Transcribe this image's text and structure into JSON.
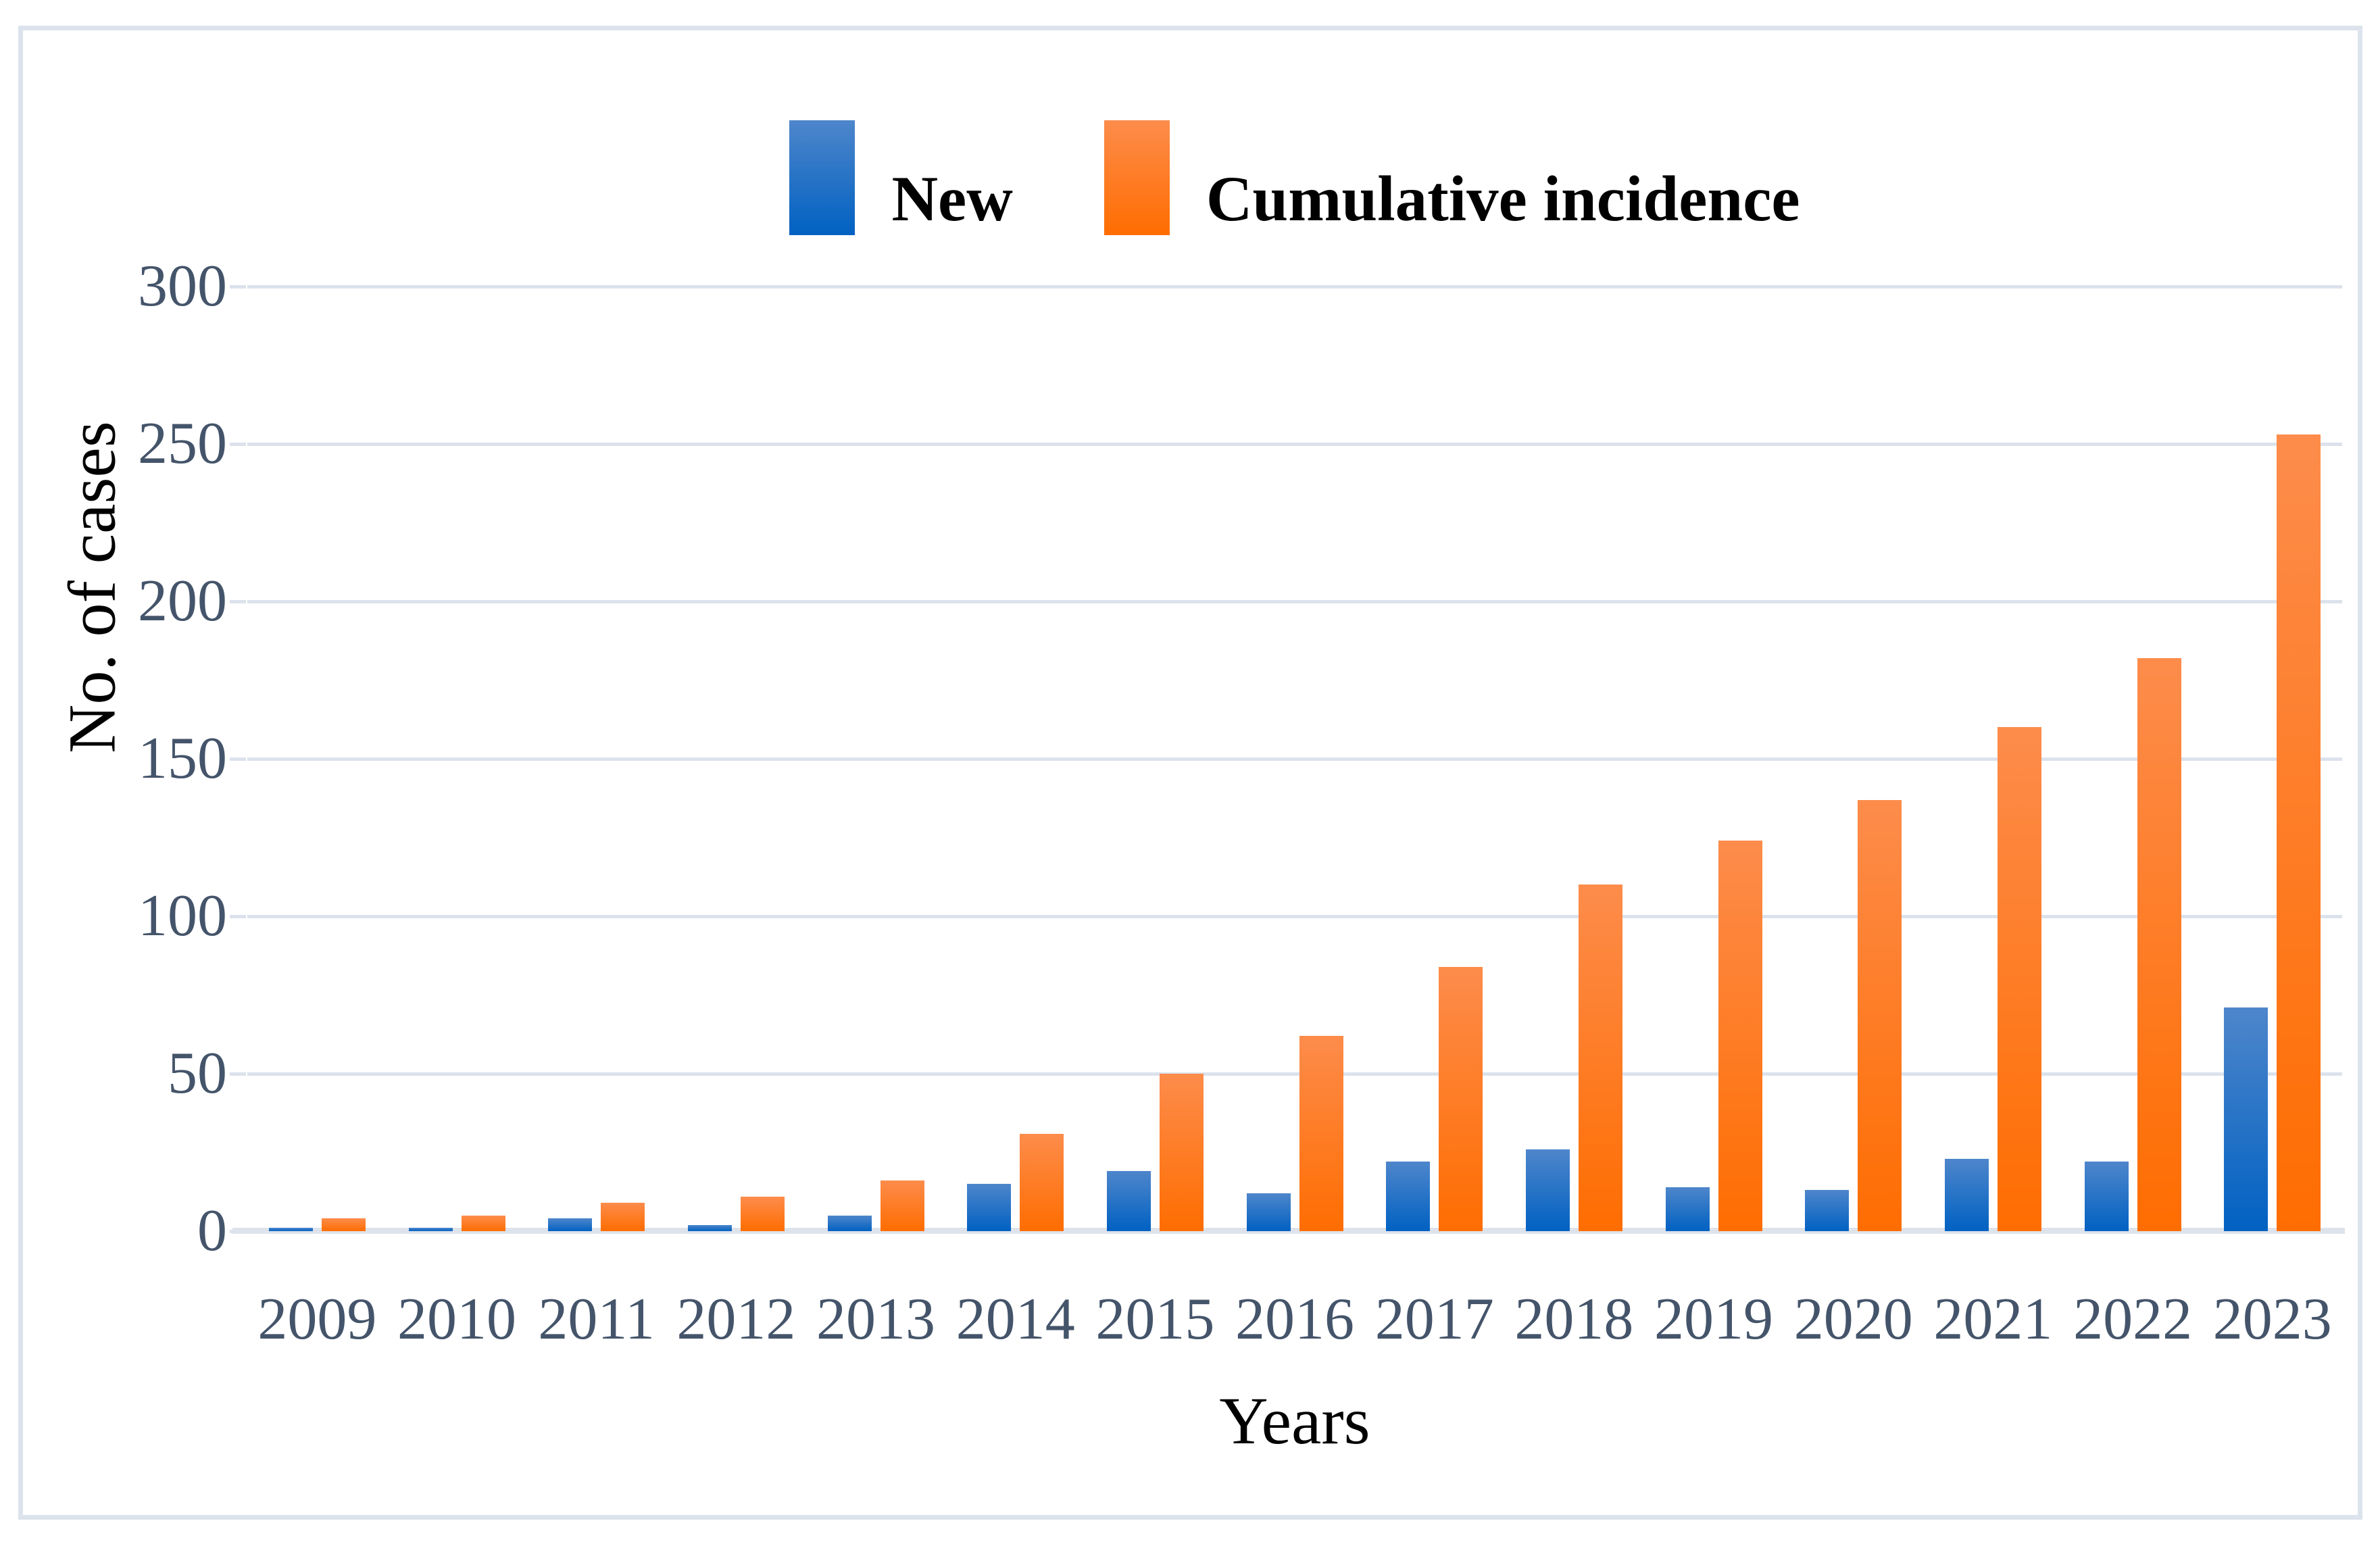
{
  "figure": {
    "background": "#ffffff",
    "border_color": "#dce3ec"
  },
  "chart_data": {
    "type": "bar",
    "title": "",
    "categories": [
      "2009",
      "2010",
      "2011",
      "2012",
      "2013",
      "2014",
      "2015",
      "2016",
      "2017",
      "2018",
      "2019",
      "2020",
      "2021",
      "2022",
      "2023"
    ],
    "series": [
      {
        "name": "New",
        "color_top": "#4e86cb",
        "color_bottom": "#0161c2",
        "values": [
          1,
          1,
          4,
          2,
          5,
          15,
          19,
          12,
          22,
          26,
          14,
          13,
          23,
          22,
          71
        ]
      },
      {
        "name": "Cumulative incidence",
        "color_top": "#fd8c4b",
        "color_bottom": "#fe6d01",
        "values": [
          4,
          5,
          9,
          11,
          16,
          31,
          50,
          62,
          84,
          110,
          124,
          137,
          160,
          182,
          253
        ]
      }
    ],
    "xlabel": "Years",
    "ylabel": "No. of cases",
    "ylim": [
      0,
      300
    ],
    "yticks": [
      0,
      50,
      100,
      150,
      200,
      250,
      300
    ],
    "grid": true,
    "legend_position": "top-center",
    "tick_label_color": "#44546a",
    "gridline_color": "#dce2ec"
  }
}
